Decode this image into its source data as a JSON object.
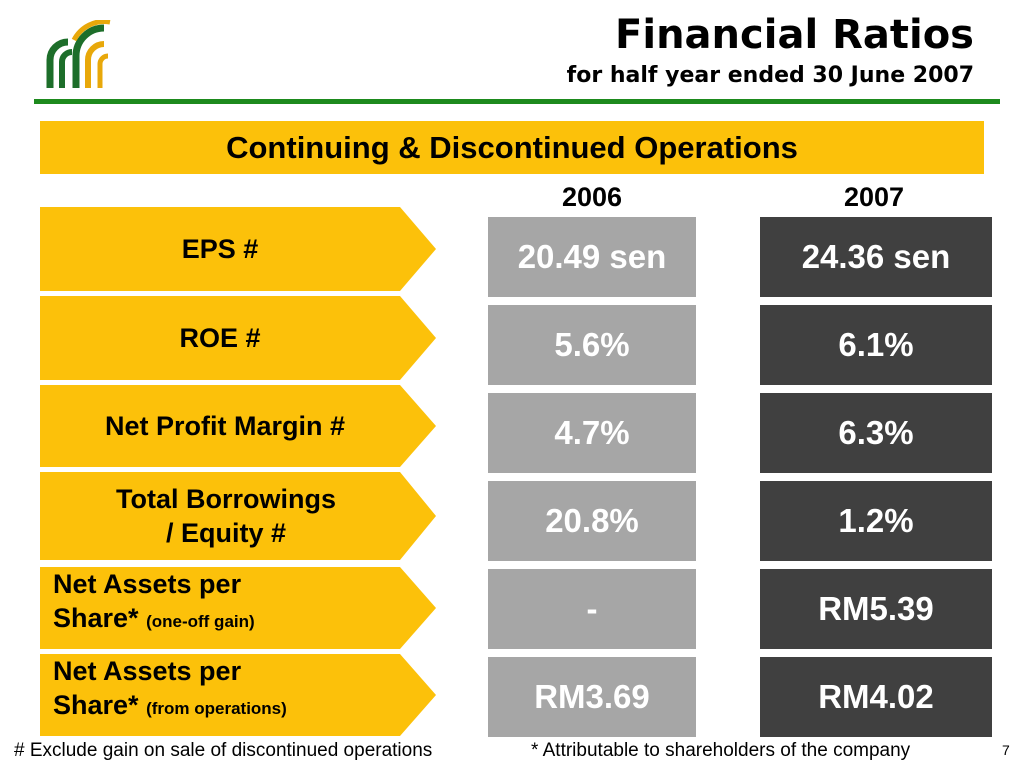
{
  "header": {
    "title": "Financial Ratios",
    "subtitle": "for half year ended 30 June 2007"
  },
  "banner": "Continuing & Discontinued Operations",
  "years": [
    "2006",
    "2007"
  ],
  "rows": [
    {
      "label": "EPS #",
      "v2006": "20.49 sen",
      "v2007": "24.36 sen"
    },
    {
      "label": "ROE #",
      "v2006": "5.6%",
      "v2007": "6.1%"
    },
    {
      "label": "Net Profit Margin #",
      "v2006": "4.7%",
      "v2007": "6.3%"
    },
    {
      "label_line1": "Total Borrowings",
      "label_line2": "/ Equity #",
      "v2006": "20.8%",
      "v2007": "1.2%"
    },
    {
      "label_line1": "Net Assets per",
      "label_line2": "Share*",
      "note": "(one-off gain)",
      "v2006": "-",
      "v2007": "RM5.39"
    },
    {
      "label_line1": "Net Assets per",
      "label_line2": "Share*",
      "note": "(from operations)",
      "v2006": "RM3.69",
      "v2007": "RM4.02"
    }
  ],
  "footnotes": {
    "hash": "# Exclude gain on sale of discontinued operations",
    "star": "* Attributable to shareholders of the company"
  },
  "page_number": "7",
  "colors": {
    "accent_yellow": "#fcc10a",
    "rule_green": "#1d8a1d",
    "cell_2006": "#a6a6a6",
    "cell_2007": "#404040"
  }
}
